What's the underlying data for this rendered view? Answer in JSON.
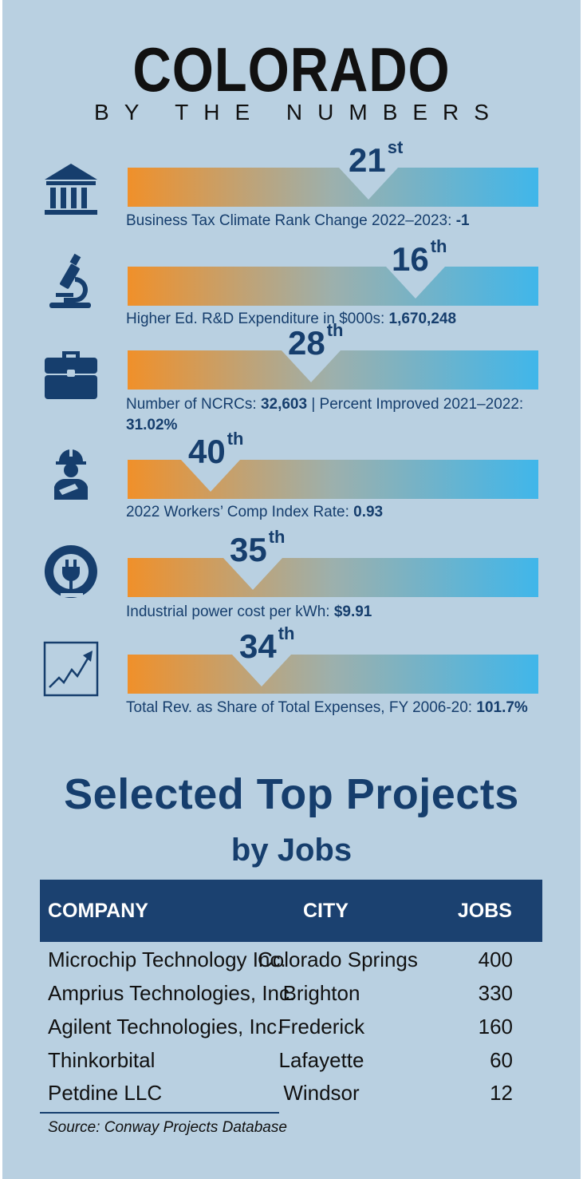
{
  "header": {
    "title": "COLORADO",
    "subtitle": "BY THE NUMBERS"
  },
  "colors": {
    "bar_left": "#f0902a",
    "bar_right": "#40b6ea",
    "navy": "#163e6d",
    "background": "#b9d0e1"
  },
  "metrics": [
    {
      "icon": "bank-building-icon",
      "rank": "21",
      "suffix": "st",
      "caption_label": "Business Tax Climate Rank Change 2022–2023:",
      "caption_value": "-1"
    },
    {
      "icon": "microscope-icon",
      "rank": "16",
      "suffix": "th",
      "caption_label": "Higher Ed. R&D Expenditure in $000s:",
      "caption_value": "1,670,248"
    },
    {
      "icon": "briefcase-icon",
      "rank": "28",
      "suffix": "th",
      "caption_label": "Number of NCRCs:",
      "caption_value": "32,603",
      "caption_label2": "| Percent Improved 2021–2022:",
      "caption_value2": "31.02%"
    },
    {
      "icon": "injured-worker-icon",
      "rank": "40",
      "suffix": "th",
      "caption_label": "2022 Workers’ Comp Index Rate:",
      "caption_value": "0.93"
    },
    {
      "icon": "power-plug-icon",
      "rank": "35",
      "suffix": "th",
      "caption_label": "Industrial power cost per kWh:",
      "caption_value": "$9.91"
    },
    {
      "icon": "trend-chart-icon",
      "rank": "34",
      "suffix": "th",
      "caption_label": "Total Rev. as Share of Total Expenses, FY 2006-20:",
      "caption_value": "101.7%"
    }
  ],
  "projects": {
    "title": "Selected Top Projects",
    "subtitle": "by Jobs",
    "headers": {
      "company": "COMPANY",
      "city": "CITY",
      "jobs": "JOBS"
    },
    "rows": [
      {
        "company": "Microchip Technology Inc.",
        "city": "Colorado Springs",
        "jobs": "400"
      },
      {
        "company": "Amprius Technologies, Inc.",
        "city": "Brighton",
        "jobs": "330"
      },
      {
        "company": "Agilent Technologies, Inc.",
        "city": "Frederick",
        "jobs": "160"
      },
      {
        "company": "Thinkorbital",
        "city": "Lafayette",
        "jobs": "60"
      },
      {
        "company": "Petdine LLC",
        "city": "Windsor",
        "jobs": "12"
      }
    ],
    "source": "Source: Conway Projects Database"
  }
}
